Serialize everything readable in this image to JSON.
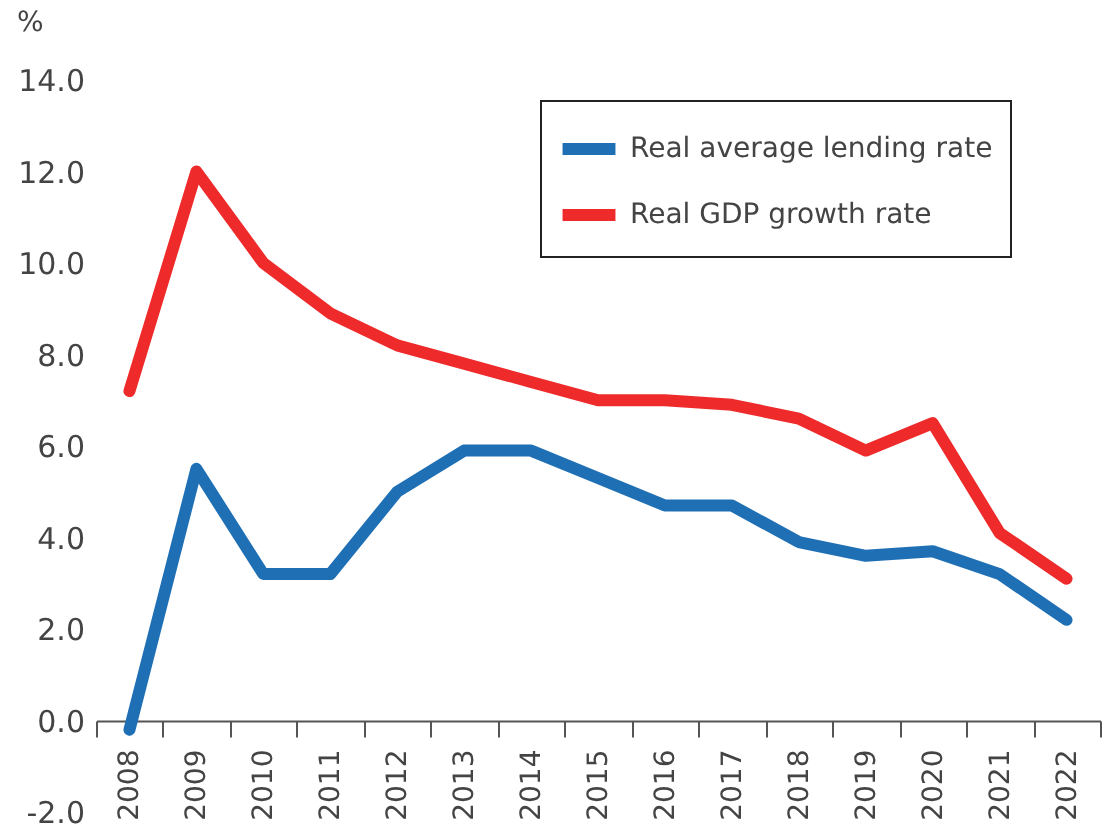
{
  "chart_data": {
    "type": "line",
    "ylabel": "%",
    "categories": [
      "2008",
      "2009",
      "2010",
      "2011",
      "2012",
      "2013",
      "2014",
      "2015",
      "2016",
      "2017",
      "2018",
      "2019",
      "2020",
      "2021",
      "2022"
    ],
    "series": [
      {
        "name": "Real average lending rate",
        "color": "#1f6fb5",
        "values": [
          -0.2,
          5.5,
          3.2,
          3.2,
          5.0,
          5.9,
          5.9,
          5.3,
          4.7,
          4.7,
          3.9,
          3.6,
          3.7,
          3.2,
          2.2
        ]
      },
      {
        "name": "Real GDP growth rate",
        "color": "#ee2a2a",
        "values": [
          7.2,
          12.0,
          10.0,
          8.9,
          8.2,
          7.8,
          7.4,
          7.0,
          7.0,
          6.9,
          6.6,
          5.9,
          6.5,
          4.1,
          3.1
        ]
      }
    ],
    "ylim": [
      -2,
      14
    ],
    "yticks": [
      {
        "value": -2,
        "label": "-2.0"
      },
      {
        "value": 0,
        "label": "0.0"
      },
      {
        "value": 2,
        "label": "2.0"
      },
      {
        "value": 4,
        "label": "4.0"
      },
      {
        "value": 6,
        "label": "6.0"
      },
      {
        "value": 8,
        "label": "8.0"
      },
      {
        "value": 10,
        "label": "10.0"
      },
      {
        "value": 12,
        "label": "12.0"
      },
      {
        "value": 14,
        "label": "14.0"
      }
    ],
    "grid": false,
    "legend": "top right",
    "marker": "none",
    "line_style": "solid"
  }
}
